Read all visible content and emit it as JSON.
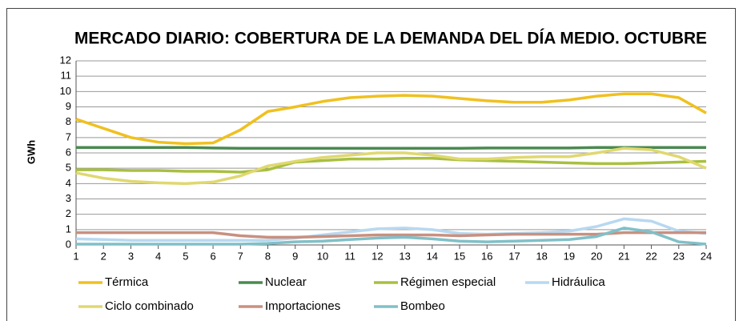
{
  "chart_data": {
    "type": "line",
    "title": "MERCADO DIARIO: COBERTURA DE LA DEMANDA DEL DÍA MEDIO. OCTUBRE",
    "y_label": "GWh",
    "x": [
      1,
      2,
      3,
      4,
      5,
      6,
      7,
      8,
      9,
      10,
      11,
      12,
      13,
      14,
      15,
      16,
      17,
      18,
      19,
      20,
      21,
      22,
      23,
      24
    ],
    "xlim": [
      1,
      24
    ],
    "ylim": [
      0,
      12
    ],
    "yticks": [
      0,
      1,
      2,
      3,
      4,
      5,
      6,
      7,
      8,
      9,
      10,
      11,
      12
    ],
    "grid": true,
    "series": [
      {
        "name": "Térmica",
        "color": "#f0c020",
        "values": [
          8.2,
          7.6,
          7.0,
          6.7,
          6.6,
          6.65,
          7.5,
          8.7,
          9.0,
          9.35,
          9.6,
          9.7,
          9.75,
          9.7,
          9.55,
          9.4,
          9.3,
          9.3,
          9.45,
          9.7,
          9.85,
          9.85,
          9.6,
          8.6
        ]
      },
      {
        "name": "Nuclear",
        "color": "#4a8a50",
        "values": [
          6.35,
          6.35,
          6.35,
          6.35,
          6.35,
          6.32,
          6.3,
          6.3,
          6.3,
          6.3,
          6.3,
          6.3,
          6.3,
          6.3,
          6.3,
          6.32,
          6.32,
          6.32,
          6.32,
          6.35,
          6.35,
          6.35,
          6.35,
          6.35
        ]
      },
      {
        "name": "Régimen especial",
        "color": "#a8c040",
        "values": [
          4.9,
          4.9,
          4.85,
          4.85,
          4.8,
          4.8,
          4.75,
          4.9,
          5.4,
          5.5,
          5.6,
          5.6,
          5.65,
          5.65,
          5.55,
          5.5,
          5.45,
          5.4,
          5.35,
          5.3,
          5.3,
          5.35,
          5.4,
          5.45
        ]
      },
      {
        "name": "Hidráulica",
        "color": "#b8d8f0",
        "values": [
          0.4,
          0.35,
          0.3,
          0.3,
          0.3,
          0.3,
          0.3,
          0.3,
          0.45,
          0.65,
          0.85,
          1.05,
          1.1,
          1.0,
          0.75,
          0.7,
          0.75,
          0.8,
          0.9,
          1.2,
          1.7,
          1.55,
          0.9,
          0.75
        ]
      },
      {
        "name": "Ciclo combinado",
        "color": "#e0d870",
        "values": [
          4.7,
          4.35,
          4.15,
          4.05,
          4.0,
          4.1,
          4.5,
          5.15,
          5.45,
          5.7,
          5.85,
          6.0,
          6.0,
          5.85,
          5.6,
          5.6,
          5.7,
          5.75,
          5.75,
          6.0,
          6.3,
          6.2,
          5.75,
          5.0
        ]
      },
      {
        "name": "Importaciones",
        "color": "#c89080",
        "values": [
          0.8,
          0.8,
          0.8,
          0.8,
          0.8,
          0.8,
          0.6,
          0.5,
          0.5,
          0.55,
          0.6,
          0.65,
          0.65,
          0.65,
          0.6,
          0.65,
          0.7,
          0.7,
          0.7,
          0.7,
          0.8,
          0.8,
          0.8,
          0.8
        ]
      },
      {
        "name": "Bombeo",
        "color": "#80c0c8",
        "values": [
          0.05,
          0.05,
          0.05,
          0.05,
          0.05,
          0.05,
          0.05,
          0.1,
          0.2,
          0.25,
          0.35,
          0.45,
          0.5,
          0.4,
          0.25,
          0.2,
          0.25,
          0.3,
          0.35,
          0.55,
          1.1,
          0.85,
          0.2,
          0.05
        ]
      }
    ]
  }
}
